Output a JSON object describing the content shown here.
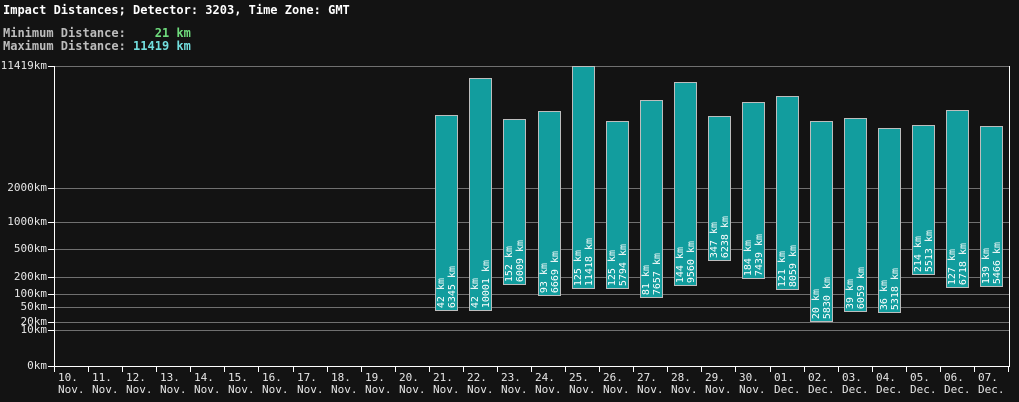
{
  "header": {
    "title": "Impact Distances; Detector: 3203, Time Zone: GMT",
    "min_distance": {
      "label": "Minimum Distance:",
      "value": "    21 km"
    },
    "max_distance": {
      "label": "Maximum Distance:",
      "value": " 11419 km"
    }
  },
  "chart_data": {
    "type": "bar",
    "subtype": "range-bar",
    "title": "Impact Distances; Detector: 3203, Time Zone: GMT",
    "unit": "km",
    "grid": true,
    "scale": {
      "type": "power",
      "exponent": 0.301,
      "max": 11419
    },
    "ylim": [
      0,
      11419
    ],
    "y_ticks": [
      {
        "label": "11419km",
        "value": 11419
      },
      {
        "label": "2000km",
        "value": 2000
      },
      {
        "label": "1000km",
        "value": 1000
      },
      {
        "label": "500km",
        "value": 500
      },
      {
        "label": "200km",
        "value": 200
      },
      {
        "label": "100km",
        "value": 100
      },
      {
        "label": "50km",
        "value": 50
      },
      {
        "label": "20km",
        "value": 20
      },
      {
        "label": "10km",
        "value": 10
      },
      {
        "label": "0km",
        "value": 0
      }
    ],
    "categories": [
      {
        "day": "10.",
        "month": "Nov."
      },
      {
        "day": "11.",
        "month": "Nov."
      },
      {
        "day": "12.",
        "month": "Nov."
      },
      {
        "day": "13.",
        "month": "Nov."
      },
      {
        "day": "14.",
        "month": "Nov."
      },
      {
        "day": "15.",
        "month": "Nov."
      },
      {
        "day": "16.",
        "month": "Nov."
      },
      {
        "day": "17.",
        "month": "Nov."
      },
      {
        "day": "18.",
        "month": "Nov."
      },
      {
        "day": "19.",
        "month": "Nov."
      },
      {
        "day": "20.",
        "month": "Nov."
      },
      {
        "day": "21.",
        "month": "Nov."
      },
      {
        "day": "22.",
        "month": "Nov."
      },
      {
        "day": "23.",
        "month": "Nov."
      },
      {
        "day": "24.",
        "month": "Nov."
      },
      {
        "day": "25.",
        "month": "Nov."
      },
      {
        "day": "26.",
        "month": "Nov."
      },
      {
        "day": "27.",
        "month": "Nov."
      },
      {
        "day": "28.",
        "month": "Nov."
      },
      {
        "day": "29.",
        "month": "Nov."
      },
      {
        "day": "30.",
        "month": "Nov."
      },
      {
        "day": "01.",
        "month": "Dec."
      },
      {
        "day": "02.",
        "month": "Dec."
      },
      {
        "day": "03.",
        "month": "Dec."
      },
      {
        "day": "04.",
        "month": "Dec."
      },
      {
        "day": "05.",
        "month": "Dec."
      },
      {
        "day": "06.",
        "month": "Dec."
      },
      {
        "day": "07.",
        "month": "Dec."
      }
    ],
    "values": [
      null,
      null,
      null,
      null,
      null,
      null,
      null,
      null,
      null,
      null,
      null,
      [
        42,
        6345
      ],
      [
        42,
        10001
      ],
      [
        152,
        6009
      ],
      [
        93,
        6669
      ],
      [
        125,
        11418
      ],
      [
        125,
        5794
      ],
      [
        81,
        7657
      ],
      [
        144,
        9560
      ],
      [
        347,
        6238
      ],
      [
        184,
        7439
      ],
      [
        121,
        8059
      ],
      [
        20,
        5830
      ],
      [
        39,
        6059
      ],
      [
        36,
        5318
      ],
      [
        214,
        5513
      ],
      [
        127,
        6718
      ],
      [
        139,
        5466
      ]
    ],
    "colors": {
      "background": "#131313",
      "bar_fill": "#129d9e",
      "bar_border": "#bdbdbd",
      "grid": "#707070",
      "axis": "#ffffff",
      "tick_text": "#e6e6e6",
      "bar_text": "#ffffff",
      "min_value": "#6fdc7d",
      "max_value": "#72dede"
    },
    "legend": null
  }
}
